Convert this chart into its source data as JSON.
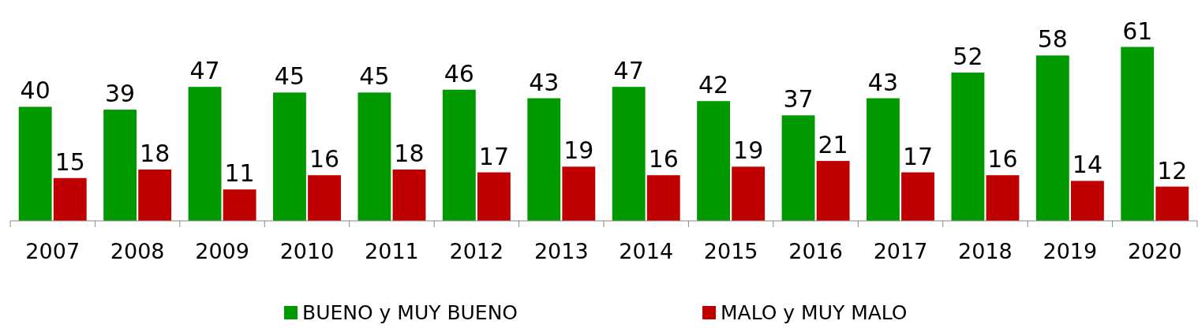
{
  "chart_data": {
    "type": "bar",
    "categories": [
      "2007",
      "2008",
      "2009",
      "2010",
      "2011",
      "2012",
      "2013",
      "2014",
      "2015",
      "2016",
      "2017",
      "2018",
      "2019",
      "2020"
    ],
    "series": [
      {
        "name": "BUENO y MUY BUENO",
        "color": "#009900",
        "values": [
          40,
          39,
          47,
          45,
          45,
          46,
          43,
          47,
          42,
          37,
          43,
          52,
          58,
          61
        ]
      },
      {
        "name": "MALO y MUY MALO",
        "color": "#c00000",
        "values": [
          15,
          18,
          11,
          16,
          18,
          17,
          19,
          16,
          19,
          21,
          17,
          16,
          14,
          12
        ]
      }
    ],
    "data_labels": true,
    "legend": "bottom"
  }
}
